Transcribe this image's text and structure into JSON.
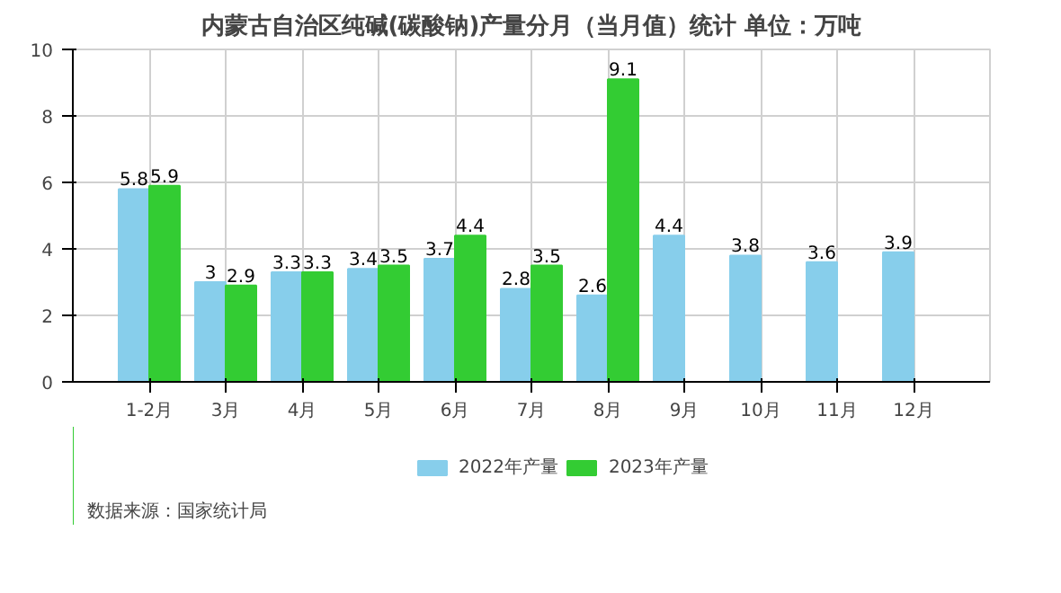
{
  "chart_data": {
    "type": "bar",
    "title": "内蒙古自治区纯碱(碳酸钠)产量分月（当月值）统计 单位：万吨",
    "categories": [
      "1-2月",
      "3月",
      "4月",
      "5月",
      "6月",
      "7月",
      "8月",
      "9月",
      "10月",
      "11月",
      "12月"
    ],
    "series": [
      {
        "name": "2022年产量",
        "color": "#87ceeb",
        "values": [
          5.8,
          3,
          3.3,
          3.4,
          3.7,
          2.8,
          2.6,
          4.4,
          3.8,
          3.6,
          3.9
        ]
      },
      {
        "name": "2023年产量",
        "color": "#33cc33",
        "values": [
          5.9,
          2.9,
          3.3,
          3.5,
          4.4,
          3.5,
          9.1,
          null,
          null,
          null,
          null
        ]
      }
    ],
    "ylim": [
      0,
      10
    ],
    "yticks": [
      0,
      2,
      4,
      6,
      8,
      10
    ],
    "grid": true,
    "legend": "bottom",
    "data_labels": true,
    "annotations": [
      "数据来源：国家统计局"
    ]
  }
}
